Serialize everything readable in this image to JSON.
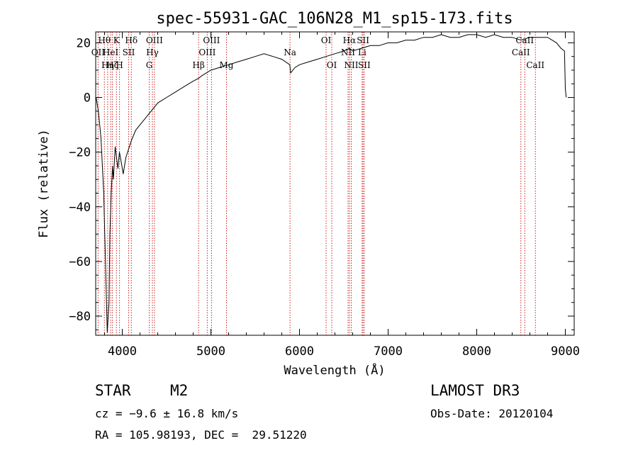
{
  "chart_data": {
    "type": "line",
    "title": "spec-55931-GAC_106N28_M1_sp15-173.fits",
    "xlabel": "Wavelength (Å)",
    "ylabel": "Flux (relative)",
    "xlim": [
      3700,
      9100
    ],
    "ylim": [
      -87,
      24
    ],
    "xticks": [
      4000,
      5000,
      6000,
      7000,
      8000,
      9000
    ],
    "xtick_labels": [
      "4000",
      "5000",
      "6000",
      "7000",
      "8000",
      "9000"
    ],
    "yticks": [
      -80,
      -60,
      -40,
      -20,
      0,
      20
    ],
    "ytick_labels": [
      "−80",
      "−60",
      "−40",
      "−20",
      "0",
      "20"
    ],
    "series": [
      {
        "name": "flux",
        "color": "#000000",
        "x": [
          3705,
          3730,
          3760,
          3790,
          3810,
          3830,
          3850,
          3860,
          3875,
          3890,
          3900,
          3920,
          3935,
          3950,
          3968,
          3990,
          4010,
          4040,
          4070,
          4100,
          4150,
          4200,
          4250,
          4300,
          4350,
          4400,
          4500,
          4600,
          4700,
          4800,
          4861,
          4900,
          5000,
          5100,
          5200,
          5300,
          5400,
          5500,
          5600,
          5700,
          5800,
          5890,
          5900,
          5950,
          6000,
          6100,
          6200,
          6300,
          6400,
          6500,
          6563,
          6600,
          6700,
          6800,
          6900,
          7000,
          7100,
          7200,
          7300,
          7400,
          7500,
          7600,
          7700,
          7800,
          7900,
          8000,
          8100,
          8200,
          8300,
          8400,
          8500,
          8600,
          8700,
          8800,
          8850,
          8900,
          8950,
          8990,
          9000,
          9010
        ],
        "y": [
          0,
          -5,
          -15,
          -35,
          -60,
          -86,
          -75,
          -50,
          -35,
          -25,
          -30,
          -18,
          -22,
          -26,
          -20,
          -24,
          -28,
          -22,
          -19,
          -16,
          -12,
          -10,
          -8,
          -6,
          -4,
          -2,
          0,
          2,
          4,
          6,
          7,
          8,
          10,
          11,
          12,
          13,
          14,
          15,
          16,
          15,
          14,
          12,
          9,
          11,
          12,
          13,
          14,
          15,
          16,
          17,
          18,
          17,
          18,
          19,
          19,
          20,
          20,
          21,
          21,
          22,
          22,
          23,
          22,
          22,
          23,
          23,
          22,
          23,
          22,
          22,
          21,
          22,
          22,
          22,
          21,
          20,
          18,
          17,
          3,
          0
        ]
      }
    ],
    "lines": [
      {
        "wave": 3727,
        "label": "OII",
        "row": 2
      },
      {
        "wave": 3798,
        "label": "Hθ",
        "row": 1
      },
      {
        "wave": 3835,
        "label": "Hη",
        "row": 3
      },
      {
        "wave": 3869,
        "label": "HeI",
        "row": 2
      },
      {
        "wave": 3889,
        "label": "Hζ",
        "row": 3
      },
      {
        "wave": 3934,
        "label": "K",
        "row": 1
      },
      {
        "wave": 3969,
        "label": "H",
        "row": 3
      },
      {
        "wave": 4072,
        "label": "SII",
        "row": 2
      },
      {
        "wave": 4102,
        "label": "Hδ",
        "row": 1
      },
      {
        "wave": 4304,
        "label": "G",
        "row": 3
      },
      {
        "wave": 4340,
        "label": "Hγ",
        "row": 2
      },
      {
        "wave": 4363,
        "label": "OIII",
        "row": 1
      },
      {
        "wave": 4861,
        "label": "Hβ",
        "row": 3
      },
      {
        "wave": 4959,
        "label": "OIII",
        "row": 2
      },
      {
        "wave": 5007,
        "label": "OIII",
        "row": 1
      },
      {
        "wave": 5176,
        "label": "Mg",
        "row": 3
      },
      {
        "wave": 5893,
        "label": "Na",
        "row": 2
      },
      {
        "wave": 6300,
        "label": "OI",
        "row": 1
      },
      {
        "wave": 6364,
        "label": "OI",
        "row": 3
      },
      {
        "wave": 6548,
        "label": "NII",
        "row": 2
      },
      {
        "wave": 6563,
        "label": "Hα",
        "row": 1
      },
      {
        "wave": 6584,
        "label": "NII",
        "row": 3
      },
      {
        "wave": 6707,
        "label": "Li",
        "row": 2
      },
      {
        "wave": 6717,
        "label": "SII",
        "row": 1
      },
      {
        "wave": 6731,
        "label": "SII",
        "row": 3
      },
      {
        "wave": 8498,
        "label": "CaII",
        "row": 2
      },
      {
        "wave": 8542,
        "label": "CaII",
        "row": 1
      },
      {
        "wave": 8662,
        "label": "CaII",
        "row": 3
      }
    ],
    "line_color": "#cc2222"
  },
  "info": {
    "class": "STAR",
    "subclass": "M2",
    "cz": "cz = −9.6 ± 16.8 km/s",
    "coords": "RA = 105.98193, DEC =  29.51220",
    "survey": "LAMOST DR3",
    "obs_date": "Obs-Date: 20120104"
  }
}
